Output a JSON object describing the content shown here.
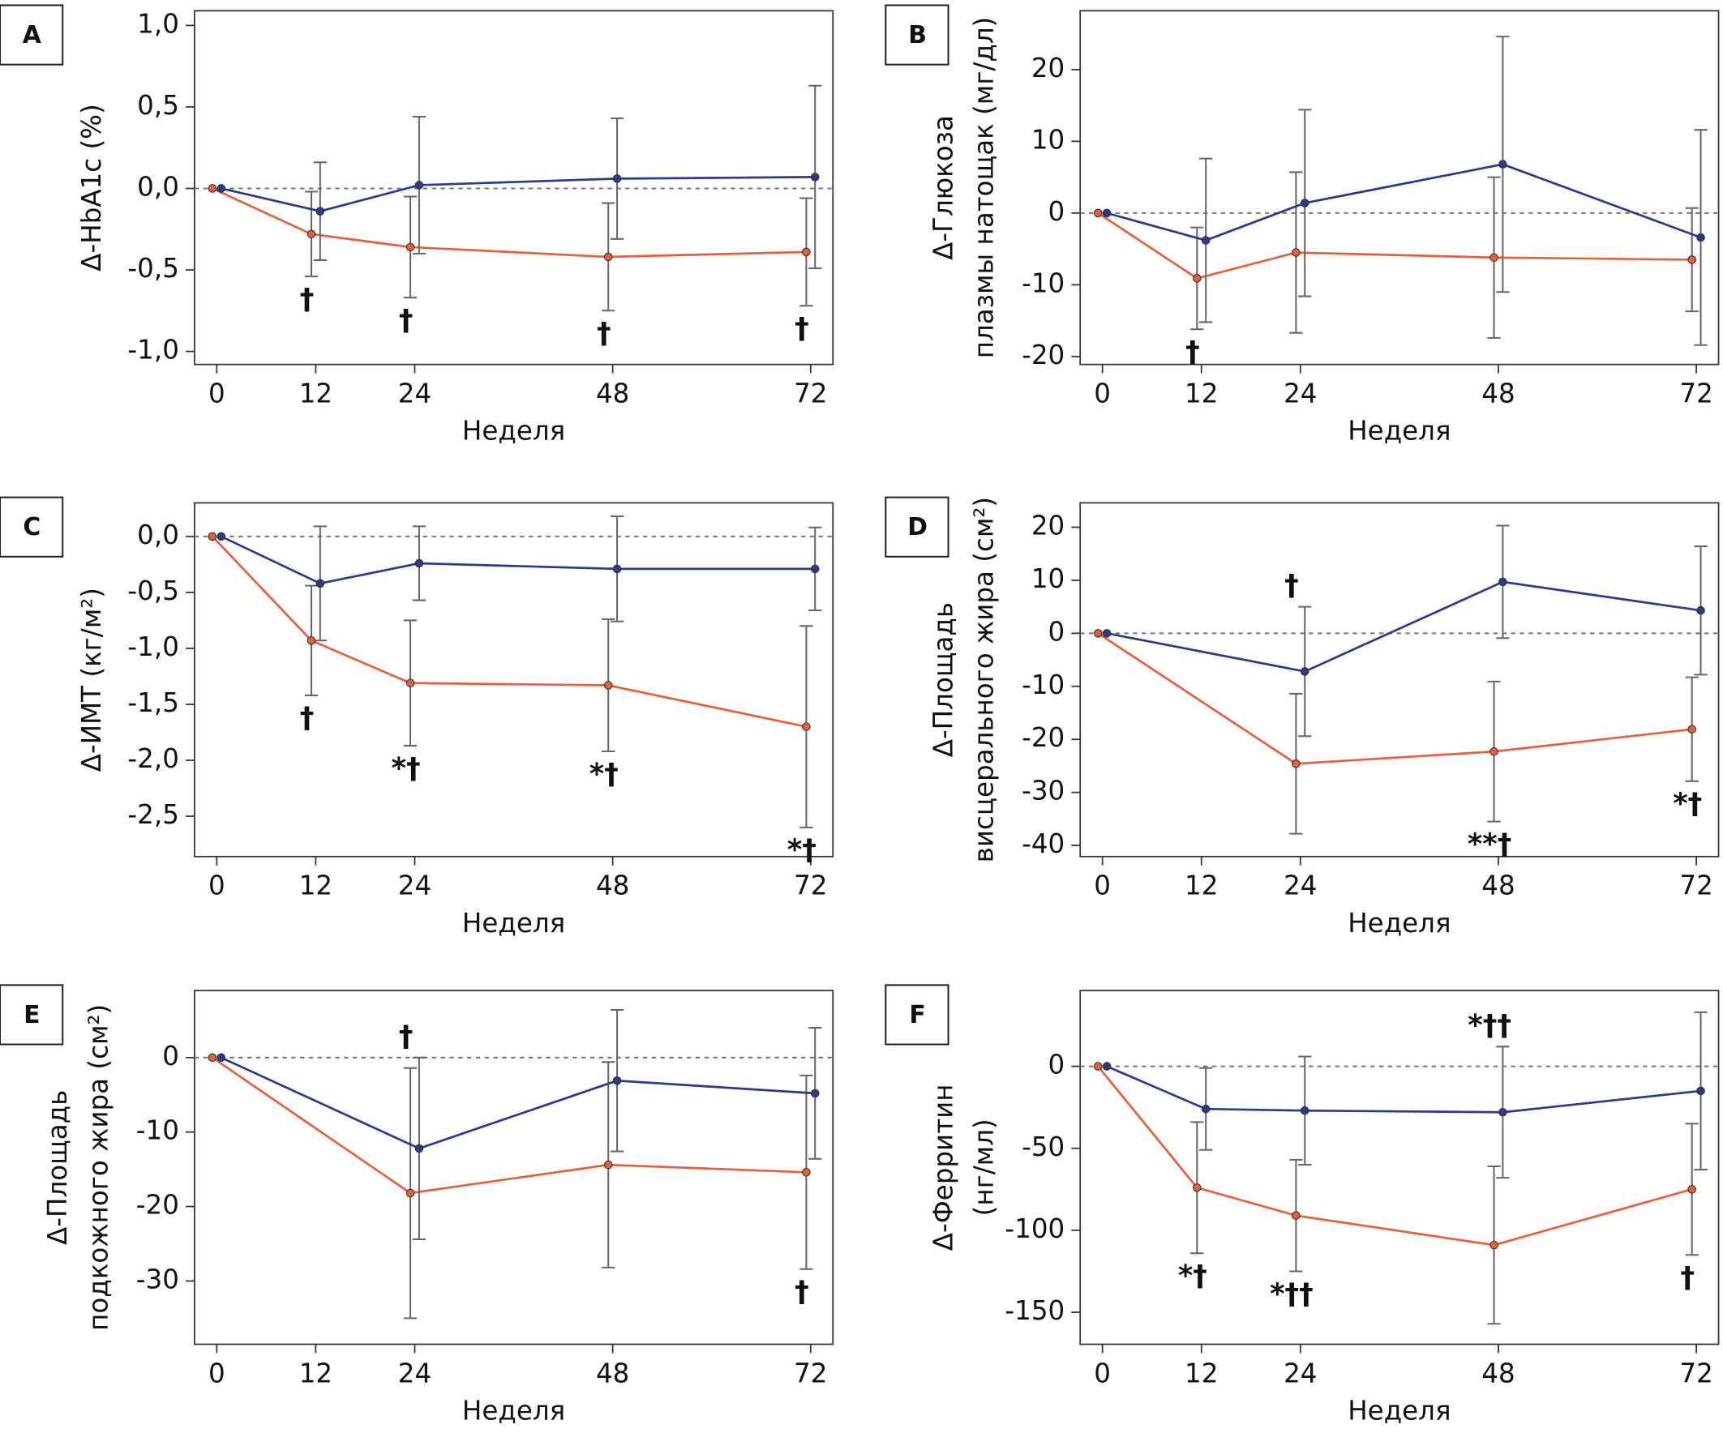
{
  "chart_data": [
    {
      "type": "line",
      "label": "A",
      "ylabel": [
        "Δ-HbA1c (%)"
      ],
      "xlabel": "Неделя",
      "x": [
        0,
        12,
        24,
        48,
        72
      ],
      "xlim": [
        -2.7,
        74.7
      ],
      "xticks": [
        0,
        12,
        24,
        48,
        72
      ],
      "ylim": [
        -1.08,
        1.09
      ],
      "yticks": [
        {
          "value": -1.0,
          "label": "-1,0"
        },
        {
          "value": -0.5,
          "label": "-0,5"
        },
        {
          "value": 0,
          "label": "0,0"
        },
        {
          "value": 0.5,
          "label": "0,5"
        },
        {
          "value": 1.0,
          "label": "1,0"
        }
      ],
      "series": [
        {
          "color": "#e4603e",
          "values": [
            0,
            -0.28,
            -0.36,
            -0.42,
            -0.39
          ],
          "errors": [
            0,
            0.26,
            0.31,
            0.33,
            0.33
          ]
        },
        {
          "color": "#2c3a8c",
          "values": [
            0,
            -0.14,
            0.02,
            0.06,
            0.07
          ],
          "errors": [
            0,
            0.3,
            0.42,
            0.37,
            0.56
          ]
        }
      ],
      "annotations": [
        {
          "x": 12,
          "text": "†"
        },
        {
          "x": 24,
          "text": "†"
        },
        {
          "x": 48,
          "text": "†"
        },
        {
          "x": 72,
          "text": "†"
        }
      ]
    },
    {
      "type": "line",
      "label": "B",
      "ylabel": [
        "Δ-Глюкоза",
        "плазмы натощак (мг/дл)"
      ],
      "xlabel": "Неделя",
      "x": [
        0,
        12,
        24,
        48,
        72
      ],
      "xlim": [
        -2.7,
        74.7
      ],
      "xticks": [
        0,
        12,
        24,
        48,
        72
      ],
      "ylim": [
        -21.1,
        28.2
      ],
      "yticks": [
        -20,
        -10,
        0,
        10,
        20
      ],
      "series": [
        {
          "color": "#e4603e",
          "values": [
            0,
            -9.1,
            -5.5,
            -6.2,
            -6.5
          ],
          "errors": [
            0,
            7.1,
            11.2,
            11.2,
            7.2
          ]
        },
        {
          "color": "#2c3a8c",
          "values": [
            0,
            -3.8,
            1.4,
            6.8,
            -3.4
          ],
          "errors": [
            0,
            11.4,
            13,
            17.8,
            15
          ]
        }
      ],
      "annotations": [
        {
          "x": 12,
          "text": "†"
        }
      ]
    },
    {
      "type": "line",
      "label": "C",
      "ylabel": [
        "Δ-ИМТ (кг/м²)"
      ],
      "xlabel": "Неделя",
      "x": [
        0,
        12,
        24,
        48,
        72
      ],
      "xlim": [
        -2.7,
        74.7
      ],
      "xticks": [
        0,
        12,
        24,
        48,
        72
      ],
      "ylim": [
        -2.86,
        0.3
      ],
      "yticks": [
        {
          "value": -2.5,
          "label": "-2,5"
        },
        {
          "value": -2.0,
          "label": "-2,0"
        },
        {
          "value": -1.5,
          "label": "-1,5"
        },
        {
          "value": -1.0,
          "label": "-1,0"
        },
        {
          "value": -0.5,
          "label": "-0,5"
        },
        {
          "value": 0,
          "label": "0,0"
        }
      ],
      "series": [
        {
          "color": "#e4603e",
          "values": [
            0,
            -0.93,
            -1.31,
            -1.33,
            -1.7
          ],
          "errors": [
            0,
            0.49,
            0.56,
            0.59,
            0.9
          ]
        },
        {
          "color": "#2c3a8c",
          "values": [
            0,
            -0.42,
            -0.24,
            -0.29,
            -0.29
          ],
          "errors": [
            0,
            0.51,
            0.33,
            0.47,
            0.37
          ]
        }
      ],
      "annotations": [
        {
          "x": 12,
          "text": "†"
        },
        {
          "x": 24,
          "text": "*†"
        },
        {
          "x": 48,
          "text": "*†"
        },
        {
          "x": 72,
          "text": "*†"
        }
      ]
    },
    {
      "type": "line",
      "label": "D",
      "ylabel": [
        "Δ-Площадь",
        "висцерального жира (см²)"
      ],
      "xlabel": "Неделя",
      "x": [
        0,
        24,
        48,
        72
      ],
      "xlim": [
        -2.7,
        74.7
      ],
      "xticks": [
        0,
        12,
        24,
        48,
        72
      ],
      "ylim": [
        -42.1,
        24.6
      ],
      "yticks": [
        -40,
        -30,
        -20,
        -10,
        0,
        10,
        20
      ],
      "series": [
        {
          "color": "#e4603e",
          "values": [
            0,
            -24.6,
            -22.3,
            -18.1
          ],
          "errors": [
            0,
            13.2,
            13.2,
            9.8
          ]
        },
        {
          "color": "#2c3a8c",
          "values": [
            0,
            -7.2,
            9.7,
            4.3
          ],
          "errors": [
            0,
            12.2,
            10.6,
            12.1
          ]
        }
      ],
      "annotations": [
        {
          "x": 24,
          "text": "†"
        },
        {
          "x": 48,
          "text": "**†"
        },
        {
          "x": 72,
          "text": "*†"
        }
      ]
    },
    {
      "type": "line",
      "label": "E",
      "ylabel": [
        "Δ-Площадь",
        "подкожного жира (см²)"
      ],
      "xlabel": "Неделя",
      "x": [
        0,
        24,
        48,
        72
      ],
      "xlim": [
        -2.7,
        74.7
      ],
      "xticks": [
        0,
        12,
        24,
        48,
        72
      ],
      "ylim": [
        -38.5,
        9.0
      ],
      "yticks": [
        -30,
        -20,
        -10,
        0
      ],
      "series": [
        {
          "color": "#e4603e",
          "values": [
            0,
            -18.2,
            -14.4,
            -15.4
          ],
          "errors": [
            0,
            16.8,
            13.8,
            13
          ]
        },
        {
          "color": "#2c3a8c",
          "values": [
            0,
            -12.2,
            -3.1,
            -4.8
          ],
          "errors": [
            0,
            12.2,
            9.5,
            8.8
          ]
        }
      ],
      "annotations": [
        {
          "x": 24,
          "text": "†"
        },
        {
          "x": 72,
          "text": "†"
        }
      ]
    },
    {
      "type": "line",
      "label": "F",
      "ylabel": [
        "Δ-Ферритин",
        "(нг/мл)"
      ],
      "xlabel": "Неделя",
      "x": [
        0,
        12,
        24,
        48,
        72
      ],
      "xlim": [
        -2.7,
        74.7
      ],
      "xticks": [
        0,
        12,
        24,
        48,
        72
      ],
      "ylim": [
        -169.5,
        46.2
      ],
      "yticks": [
        -150,
        -100,
        -50,
        0
      ],
      "series": [
        {
          "color": "#e4603e",
          "values": [
            0,
            -74,
            -91,
            -109,
            -75
          ],
          "errors": [
            0,
            40,
            34,
            48,
            40
          ]
        },
        {
          "color": "#2c3a8c",
          "values": [
            0,
            -26,
            -27,
            -28,
            -15
          ],
          "errors": [
            0,
            25,
            33,
            40,
            48
          ]
        }
      ],
      "annotations": [
        {
          "x": 12,
          "text": "*†"
        },
        {
          "x": 24,
          "text": "*††"
        },
        {
          "x": 48,
          "text": "*††"
        },
        {
          "x": 72,
          "text": "†"
        }
      ]
    }
  ]
}
